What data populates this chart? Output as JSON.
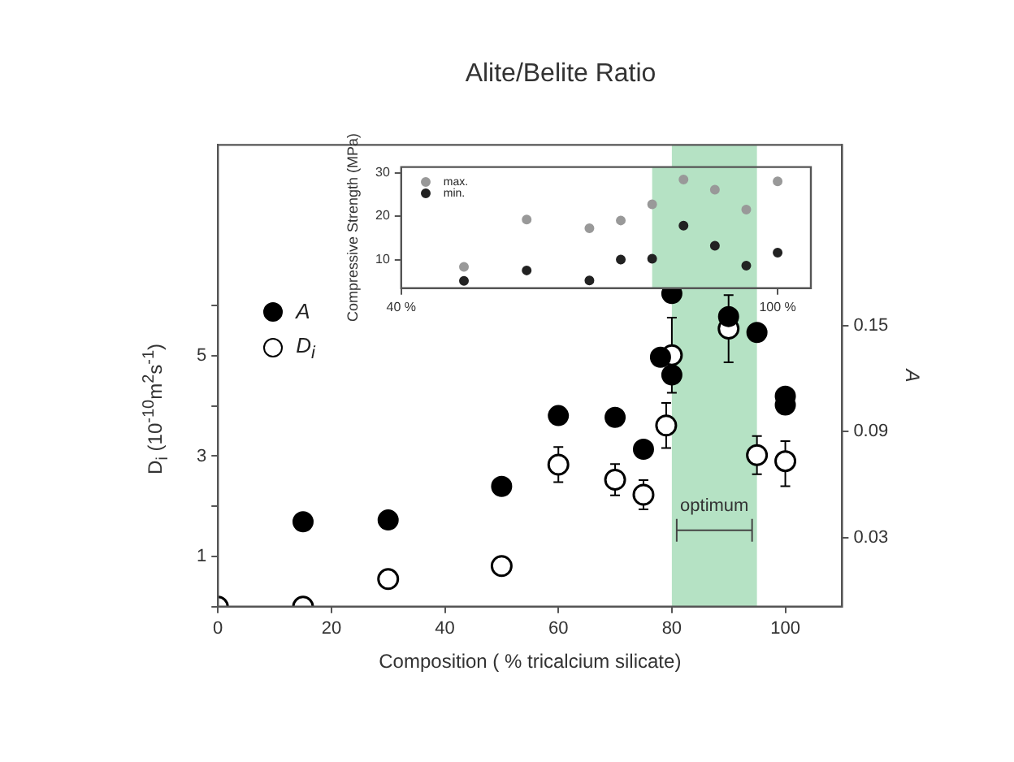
{
  "chart_data": [
    {
      "type": "scatter",
      "title": "Alite/Belite Ratio",
      "xlabel": "Composition ( % tricalcium silicate)",
      "ylabel": "D$_{i}$ (10$^{-10}$m$^{2}$s$^{-1}$)",
      "y2label": "A",
      "xlim": [
        0,
        110
      ],
      "xticks": [
        0,
        20,
        40,
        60,
        80,
        100
      ],
      "ylim": [
        0,
        9.2
      ],
      "yticks": [
        {
          "value": 0,
          "label": null
        },
        1,
        {
          "value": 2,
          "label": null
        },
        3,
        {
          "value": 4,
          "label": null
        },
        5,
        {
          "value": 6,
          "label": null
        }
      ],
      "y2lim": [
        -0.009,
        0.252
      ],
      "y2ticks": [
        0.03,
        0.09,
        0.15
      ],
      "legend": "top left",
      "marker": "circle",
      "grid": false,
      "bands": [
        {
          "axis": "x",
          "from": 80,
          "to": 95,
          "label": "optimum",
          "color": "#b5e2c4"
        }
      ],
      "series": [
        {
          "name": "A",
          "color": "#000000",
          "axis": "y2",
          "x": [
            15,
            30,
            50,
            60,
            70,
            75,
            78,
            80,
            80,
            90,
            95,
            100,
            100
          ],
          "values": [
            0.039,
            0.04,
            0.059,
            0.099,
            0.098,
            0.08,
            0.132,
            0.168,
            0.122,
            0.155,
            0.146,
            0.11,
            0.105
          ]
        },
        {
          "name": "D$_{i}$",
          "color": "#000000",
          "x": [
            0,
            15,
            30,
            50,
            60,
            70,
            75,
            79,
            80,
            90,
            95,
            100
          ],
          "values": [
            0,
            0,
            0.55,
            0.81,
            2.83,
            2.53,
            2.23,
            3.61,
            5.01,
            5.54,
            3.02,
            2.9
          ],
          "errors": [
            null,
            null,
            null,
            null,
            0.35,
            0.31,
            0.29,
            0.45,
            0.75,
            0.67,
            0.38,
            [
              2.4,
              3.3
            ]
          ]
        }
      ]
    },
    {
      "type": "scatter",
      "ylabel": "Compressive Strength (MPa)",
      "xlim": [
        40,
        105.3
      ],
      "xticks": [
        {
          "value": 40,
          "label": "40 %"
        },
        {
          "value": 100,
          "label": "100 %"
        }
      ],
      "ylim": [
        3.4,
        31.3
      ],
      "yticks": [
        10,
        20,
        30
      ],
      "legend": "top left",
      "marker": "circle",
      "grid": false,
      "bands": [
        {
          "axis": "x",
          "from": 80,
          "to": 95,
          "color": "#b5e2c4"
        }
      ],
      "series": [
        {
          "name": "max.",
          "color": "#999999",
          "x": [
            50,
            60,
            70,
            75,
            80,
            85,
            90,
            95,
            100
          ],
          "values": [
            8.3,
            19.2,
            17.2,
            19.0,
            22.7,
            28.4,
            26.1,
            21.5,
            28.0
          ]
        },
        {
          "name": "min.",
          "color": "#222222",
          "x": [
            50,
            60,
            70,
            75,
            80,
            85,
            90,
            95,
            100
          ],
          "values": [
            5.1,
            7.5,
            5.2,
            10.0,
            10.2,
            17.8,
            13.2,
            8.6,
            11.6
          ]
        }
      ]
    }
  ]
}
